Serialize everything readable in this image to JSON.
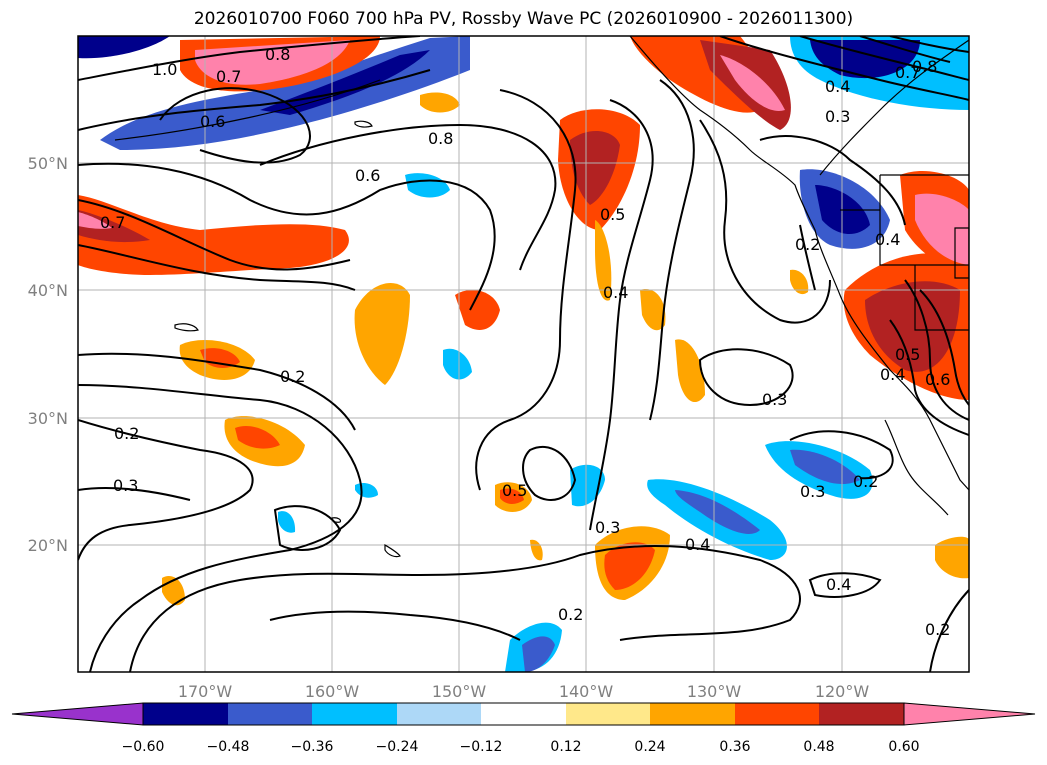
{
  "title": "2026010700 F060 700 hPa PV, Rossby Wave PC (2026010900 - 2026011300)",
  "lat_labels": [
    "50°N",
    "40°N",
    "30°N",
    "20°N"
  ],
  "lon_labels": [
    "170°W",
    "160°W",
    "150°W",
    "140°W",
    "130°W",
    "120°W"
  ],
  "contour_labels": [
    "1.0",
    "0.7",
    "0.8",
    "0.6",
    "0.8",
    "0.6",
    "0.7",
    "0.2",
    "0.2",
    "0.3",
    "0.5",
    "0.4",
    "0.5",
    "0.3",
    "0.4",
    "0.3",
    "0.2",
    "0.4",
    "0.3",
    "0.2",
    "0.3",
    "0.4",
    "0.5",
    "0.6",
    "0.2",
    "0.4",
    "0.7",
    "0.8",
    "0.2",
    "0.4"
  ],
  "colorbar": {
    "tick_labels": [
      "−0.60",
      "−0.48",
      "−0.36",
      "−0.24",
      "−0.12",
      "0.12",
      "0.24",
      "0.36",
      "0.48",
      "0.60"
    ],
    "colors": [
      "#9932cc",
      "#00008b",
      "#3a5bcc",
      "#00bfff",
      "#add8f7",
      "#ffffff",
      "#ffe88a",
      "#ffa500",
      "#ff4500",
      "#b22222",
      "#ff82ab"
    ]
  }
}
